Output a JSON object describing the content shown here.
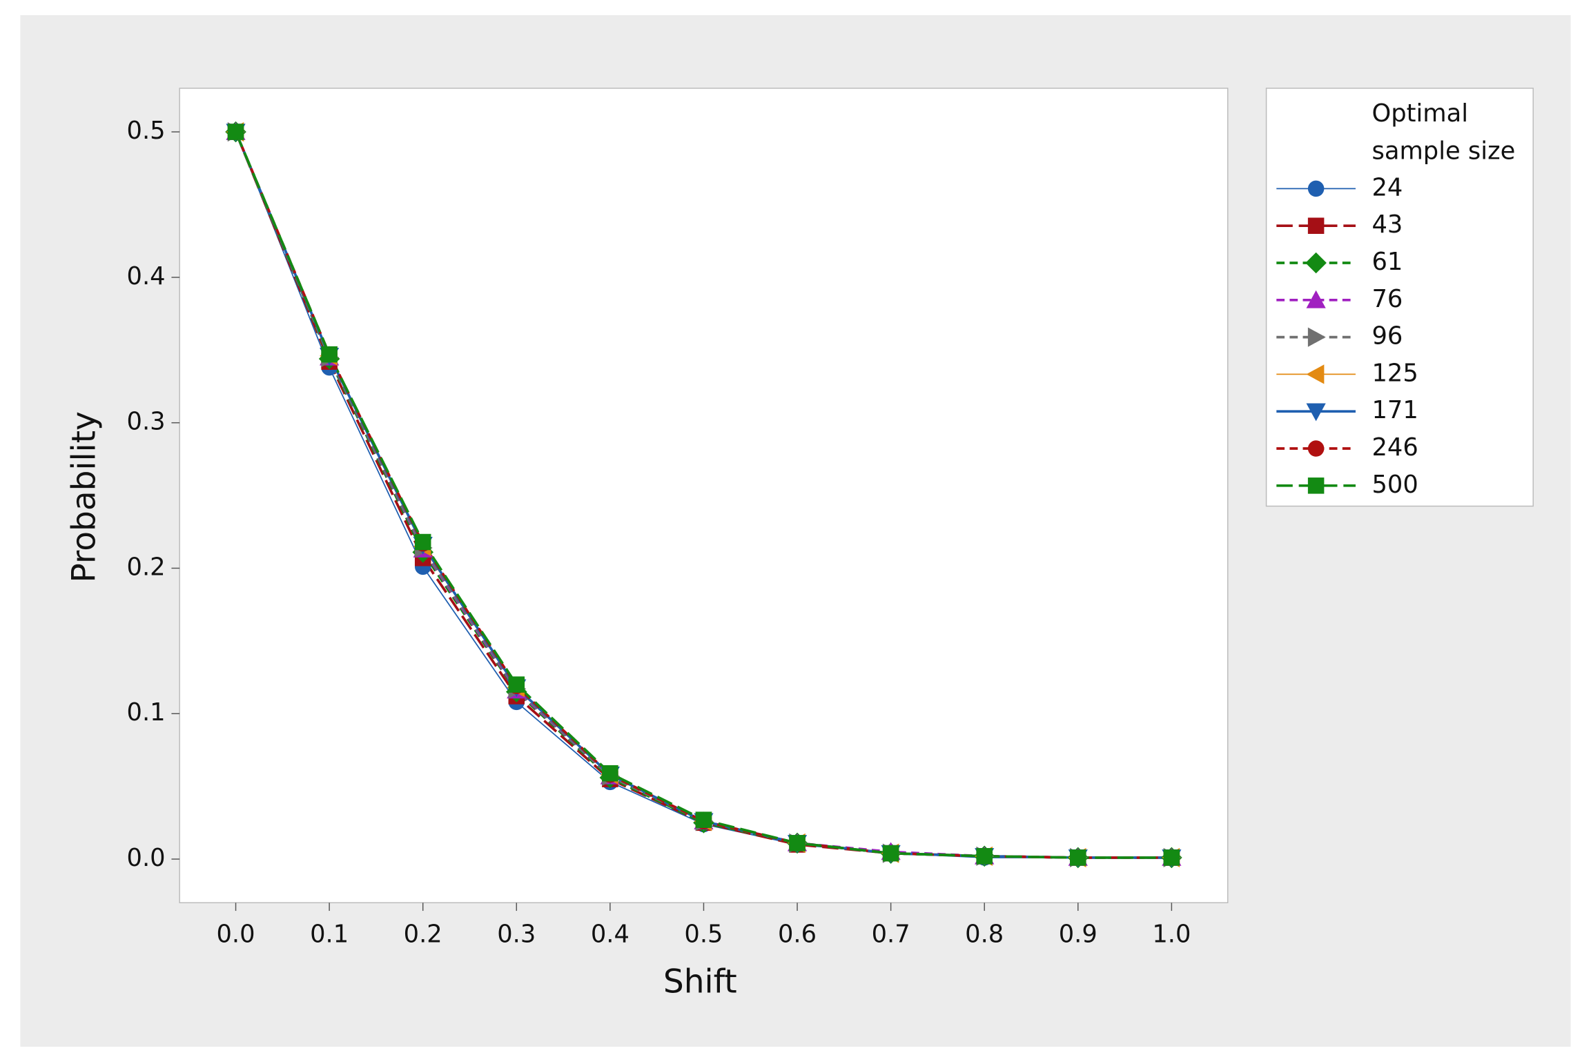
{
  "chart_data": {
    "type": "line",
    "x_label": "Shift",
    "y_label": "Probability",
    "legend_title": [
      "Optimal",
      "sample size"
    ],
    "legend": "right",
    "x": [
      0,
      0.1,
      0.2,
      0.3,
      0.4,
      0.5,
      0.6,
      0.7,
      0.8,
      0.9,
      1
    ],
    "xlim": [
      -0.06,
      1.06
    ],
    "xticks": [
      {
        "value": 0,
        "label": "0.0"
      },
      0.1,
      0.2,
      0.3,
      0.4,
      0.5,
      0.6,
      0.7,
      0.8,
      0.9,
      {
        "value": 1,
        "label": "1.0"
      }
    ],
    "ylim": [
      -0.03,
      0.53
    ],
    "yticks": [
      {
        "value": 0,
        "label": "0.0"
      },
      0.1,
      0.2,
      0.3,
      0.4,
      0.5
    ],
    "series": [
      {
        "name": "24",
        "color": "#1f5fb0",
        "marker": "circle",
        "dash": "solid",
        "width": 1.2,
        "values": [
          0.5,
          0.338,
          0.201,
          0.108,
          0.053,
          0.024,
          0.01,
          0.004,
          0.001,
          0.001,
          0.001
        ]
      },
      {
        "name": "43",
        "color": "#a50f15",
        "marker": "square",
        "dash": "longdash",
        "width": 2.5,
        "values": [
          0.5,
          0.342,
          0.207,
          0.112,
          0.055,
          0.025,
          0.01,
          0.004,
          0.002,
          0.001,
          0.001
        ]
      },
      {
        "name": "61",
        "color": "#138a13",
        "marker": "diamond",
        "dash": "dashed",
        "width": 2.5,
        "values": [
          0.5,
          0.344,
          0.211,
          0.115,
          0.056,
          0.025,
          0.011,
          0.004,
          0.002,
          0.001,
          0.001
        ]
      },
      {
        "name": "76",
        "color": "#a020c0",
        "marker": "triangle-up",
        "dash": "dashed",
        "width": 2.5,
        "values": [
          0.5,
          0.345,
          0.213,
          0.116,
          0.057,
          0.026,
          0.011,
          0.005,
          0.002,
          0.001,
          0.001
        ]
      },
      {
        "name": "96",
        "color": "#707070",
        "marker": "triangle-right",
        "dash": "dashed",
        "width": 2.5,
        "values": [
          0.5,
          0.345,
          0.214,
          0.117,
          0.057,
          0.026,
          0.011,
          0.004,
          0.002,
          0.001,
          0.001
        ]
      },
      {
        "name": "125",
        "color": "#e38a12",
        "marker": "triangle-left",
        "dash": "solid",
        "width": 1.2,
        "values": [
          0.5,
          0.346,
          0.215,
          0.118,
          0.058,
          0.026,
          0.011,
          0.004,
          0.002,
          0.001,
          0.001
        ]
      },
      {
        "name": "171",
        "color": "#1f5fb0",
        "marker": "triangle-down",
        "dash": "solid",
        "width": 2.5,
        "values": [
          0.5,
          0.346,
          0.216,
          0.118,
          0.058,
          0.026,
          0.011,
          0.004,
          0.002,
          0.001,
          0.001
        ]
      },
      {
        "name": "246",
        "color": "#b01010",
        "marker": "circle",
        "dash": "dashed",
        "width": 2.5,
        "values": [
          0.5,
          0.347,
          0.217,
          0.119,
          0.058,
          0.026,
          0.011,
          0.004,
          0.002,
          0.001,
          0.001
        ]
      },
      {
        "name": "500",
        "color": "#138a13",
        "marker": "square",
        "dash": "longdash",
        "width": 2.5,
        "values": [
          0.5,
          0.347,
          0.218,
          0.12,
          0.059,
          0.027,
          0.011,
          0.004,
          0.002,
          0.001,
          0.001
        ]
      }
    ]
  }
}
